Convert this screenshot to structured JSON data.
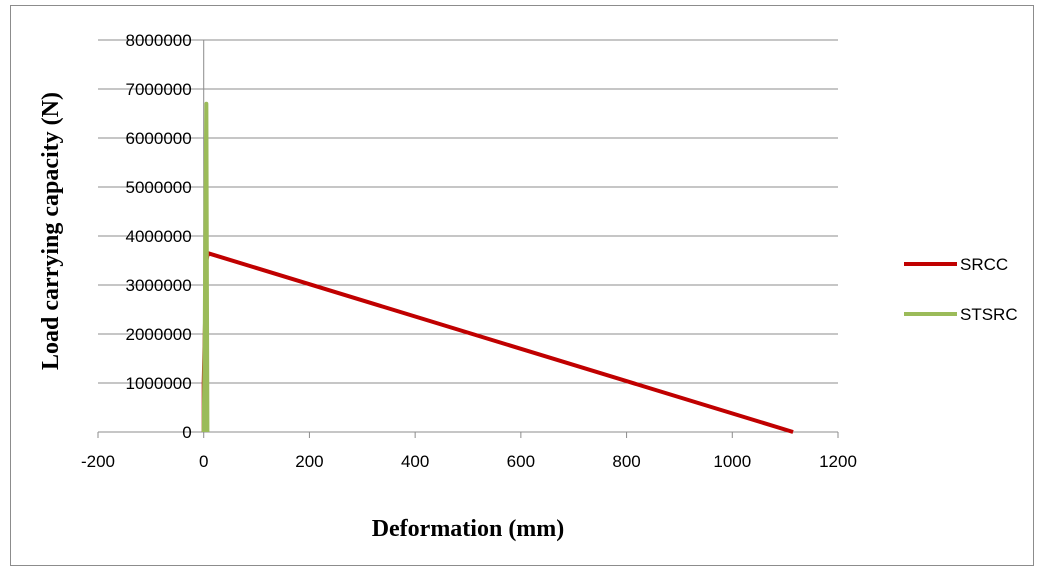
{
  "chart_data": {
    "type": "scatter",
    "xlabel": "Deformation (mm)",
    "ylabel": "Load carrying capacity (N)",
    "xlim": [
      -200,
      1200
    ],
    "ylim": [
      0,
      8000000
    ],
    "x_ticks": [
      "-200",
      "0",
      "200",
      "400",
      "600",
      "800",
      "1000",
      "1200"
    ],
    "y_ticks": [
      "0",
      "1000000",
      "2000000",
      "3000000",
      "4000000",
      "5000000",
      "6000000",
      "7000000",
      "8000000"
    ],
    "grid": "horizontal",
    "legend_position": "right",
    "series": [
      {
        "name": "SRCC",
        "color": "#c00000",
        "points": [
          [
            0,
            0
          ],
          [
            0,
            1000000
          ],
          [
            3,
            2500000
          ],
          [
            5,
            3500000
          ],
          [
            8,
            3650000
          ],
          [
            1115,
            0
          ]
        ]
      },
      {
        "name": "STSRC",
        "color": "#9bbb59",
        "points": [
          [
            0,
            0
          ],
          [
            2,
            2000000
          ],
          [
            3,
            4000000
          ],
          [
            4,
            5500000
          ],
          [
            5,
            6700000
          ],
          [
            6,
            3000000
          ],
          [
            7,
            0
          ]
        ]
      }
    ]
  }
}
